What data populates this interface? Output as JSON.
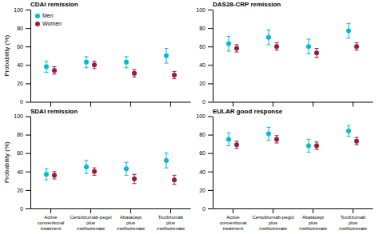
{
  "chart_data": [
    {
      "type": "errorbar",
      "title": "CDAI remission",
      "ylabel": "Probability (%)",
      "categories": [
        "Active\nconventional\ntreatment",
        "Certolizumab-pegol\nplus\nmethotrexate",
        "Abatacept\nplus\nmethotrexate",
        "Tocilizumab\nplus\nmethotrexate"
      ],
      "series": [
        {
          "name": "Men",
          "color": "#00BCD4",
          "values": [
            38,
            43,
            43,
            50
          ],
          "error_low": [
            6,
            6,
            6,
            8
          ],
          "error_high": [
            6,
            6,
            6,
            8
          ]
        },
        {
          "name": "Women",
          "color": "#9B1B3A",
          "values": [
            34,
            40,
            31,
            29
          ],
          "error_low": [
            4,
            4,
            4,
            4
          ],
          "error_high": [
            4,
            4,
            4,
            4
          ]
        }
      ],
      "ylim": [
        0,
        100
      ],
      "yticks": [
        0,
        20,
        40,
        60,
        80,
        100
      ],
      "tick_labels": "y",
      "legend": "upper-left"
    },
    {
      "type": "errorbar",
      "title": "DAS28-CRP remission",
      "categories": [
        "Active\nconventional\ntreatment",
        "Certolizumab-pegol\nplus\nmethotrexate",
        "Abatacept\nplus\nmethotrexate",
        "Tocilizumab\nplus\nmethotrexate"
      ],
      "series": [
        {
          "name": "Men",
          "color": "#00BCD4",
          "values": [
            63,
            70,
            60,
            77
          ],
          "error_low": [
            8,
            8,
            8,
            8
          ],
          "error_high": [
            8,
            8,
            8,
            8
          ]
        },
        {
          "name": "Women",
          "color": "#9B1B3A",
          "values": [
            58,
            60,
            53,
            60
          ],
          "error_low": [
            4,
            4,
            5,
            4
          ],
          "error_high": [
            4,
            4,
            5,
            4
          ]
        }
      ],
      "ylim": [
        0,
        100
      ],
      "yticks": [
        0,
        20,
        40,
        60,
        80,
        100
      ],
      "tick_labels": "y"
    },
    {
      "type": "errorbar",
      "title": "SDAI remission",
      "ylabel": "Probability (%)",
      "categories": [
        "Active\nconventional\ntreatment",
        "Certolizumab-pegol\nplus\nmethotrexate",
        "Abatacept\nplus\nmethotrexate",
        "Tocilizumab\nplus\nmethotrexate"
      ],
      "series": [
        {
          "name": "Men",
          "color": "#00BCD4",
          "values": [
            37,
            45,
            43,
            52
          ],
          "error_low": [
            6,
            7,
            7,
            8
          ],
          "error_high": [
            6,
            7,
            7,
            8
          ]
        },
        {
          "name": "Women",
          "color": "#9B1B3A",
          "values": [
            36,
            40,
            32,
            31
          ],
          "error_low": [
            4,
            4,
            5,
            5
          ],
          "error_high": [
            4,
            4,
            5,
            5
          ]
        }
      ],
      "ylim": [
        0,
        100
      ],
      "yticks": [
        0,
        20,
        40,
        60,
        80,
        100
      ]
    },
    {
      "type": "errorbar",
      "title": "EULAR good response",
      "categories": [
        "Active\nconventional\ntreatment",
        "Certolizumab-pegol\nplus\nmethotrexate",
        "Abatacept\nplus\nmethotrexate",
        "Tocilizumab\nplus\nmethotrexate"
      ],
      "series": [
        {
          "name": "Men",
          "color": "#00BCD4",
          "values": [
            75,
            81,
            68,
            84
          ],
          "error_low": [
            7,
            7,
            7,
            6
          ],
          "error_high": [
            7,
            7,
            7,
            6
          ]
        },
        {
          "name": "Women",
          "color": "#9B1B3A",
          "values": [
            69,
            75,
            68,
            73
          ],
          "error_low": [
            4,
            4,
            4,
            4
          ],
          "error_high": [
            4,
            4,
            4,
            4
          ]
        }
      ],
      "ylim": [
        0,
        100
      ],
      "yticks": [
        0,
        20,
        40,
        60,
        80,
        100
      ]
    }
  ]
}
